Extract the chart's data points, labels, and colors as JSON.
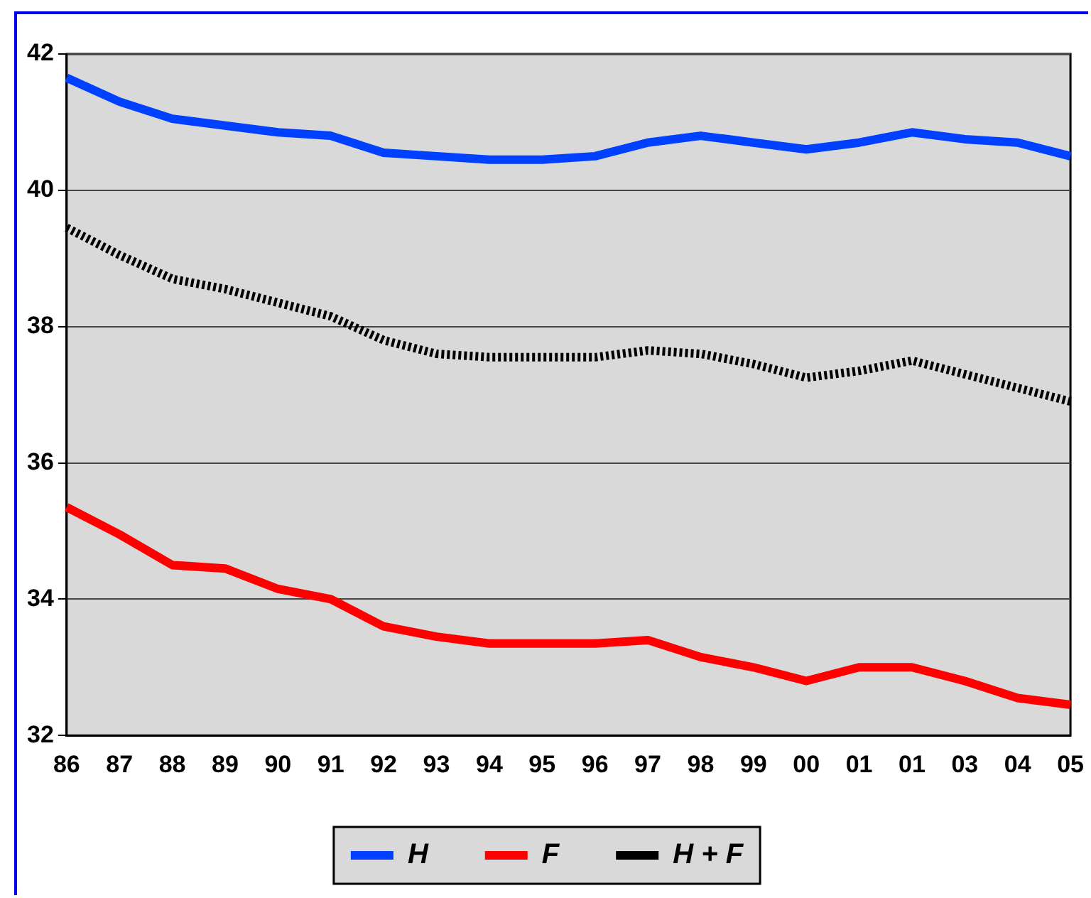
{
  "chart_data": {
    "type": "line",
    "categories": [
      "86",
      "87",
      "88",
      "89",
      "90",
      "91",
      "92",
      "93",
      "94",
      "95",
      "96",
      "97",
      "98",
      "99",
      "00",
      "01",
      "01",
      "03",
      "04",
      "05"
    ],
    "series": [
      {
        "name": "H",
        "color": "#0040ff",
        "line_style": "solid",
        "values": [
          41.65,
          41.3,
          41.05,
          40.95,
          40.85,
          40.8,
          40.55,
          40.5,
          40.45,
          40.45,
          40.5,
          40.7,
          40.8,
          40.7,
          40.6,
          40.7,
          40.85,
          40.75,
          40.7,
          40.5
        ]
      },
      {
        "name": "F",
        "color": "#ff0000",
        "line_style": "solid",
        "values": [
          35.35,
          34.95,
          34.5,
          34.45,
          34.15,
          34.0,
          33.6,
          33.45,
          33.35,
          33.35,
          33.35,
          33.4,
          33.15,
          33.0,
          32.8,
          33.0,
          33.0,
          32.8,
          32.55,
          32.45
        ]
      },
      {
        "name": "H + F",
        "color": "#000000",
        "line_style": "dotted",
        "values": [
          39.45,
          39.05,
          38.7,
          38.55,
          38.35,
          38.15,
          37.8,
          37.6,
          37.55,
          37.55,
          37.55,
          37.65,
          37.6,
          37.45,
          37.25,
          37.35,
          37.5,
          37.3,
          37.1,
          36.9
        ]
      }
    ],
    "ylim": [
      32,
      42
    ],
    "yticks": [
      32,
      34,
      36,
      38,
      40,
      42
    ],
    "grid": "y",
    "legend": "bottom",
    "marker": "none"
  }
}
